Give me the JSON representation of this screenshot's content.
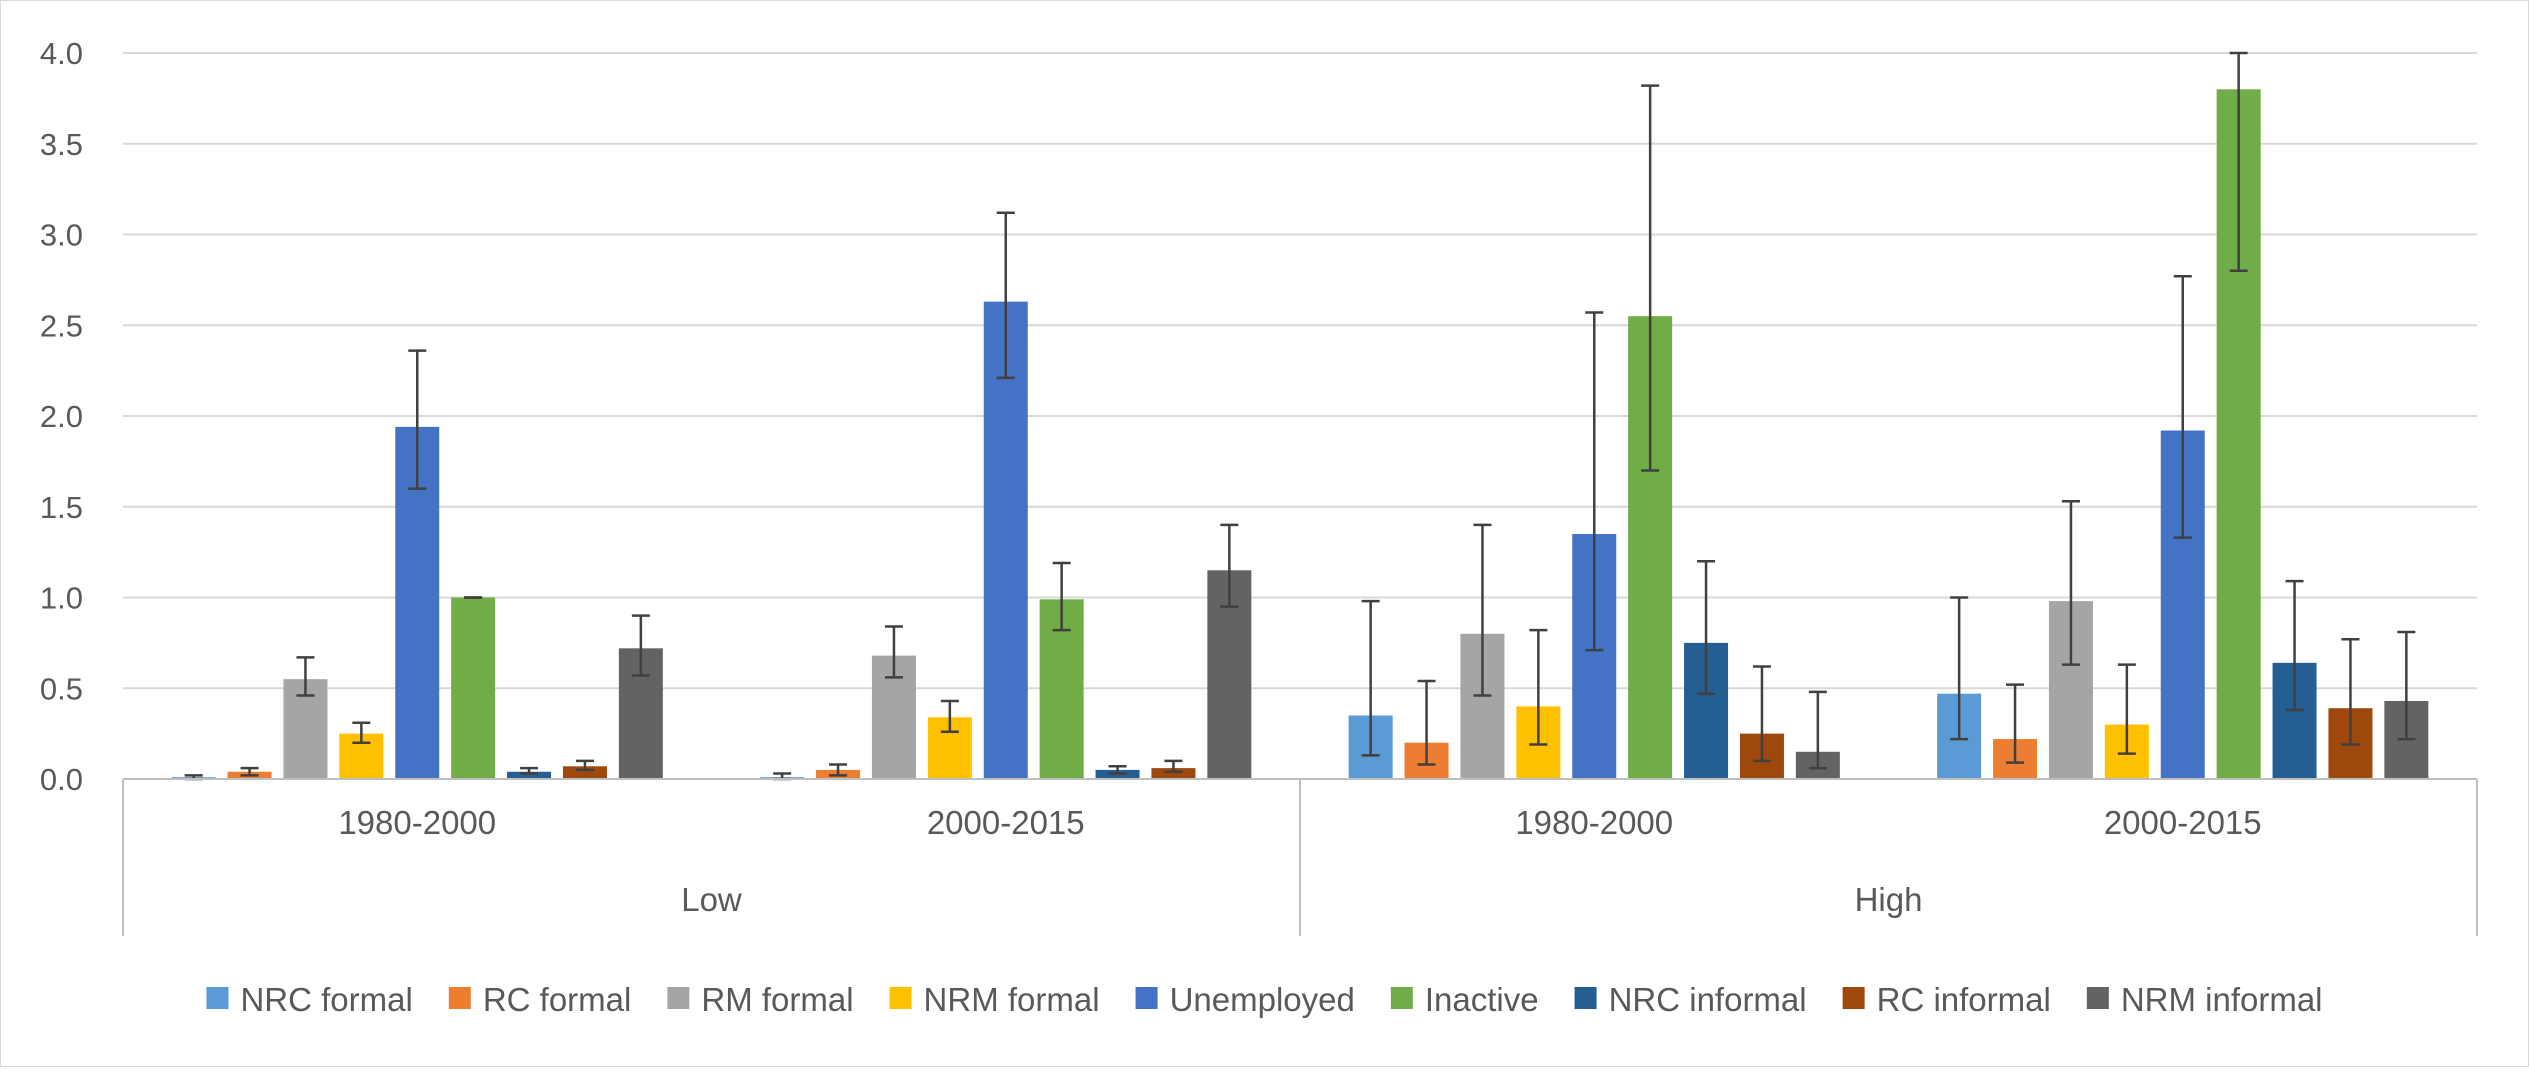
{
  "chart_data": {
    "type": "bar",
    "title": "",
    "xlabel": "",
    "ylabel": "",
    "ylim": [
      0,
      4.0
    ],
    "yticks": [
      "0.0",
      "0.5",
      "1.0",
      "1.5",
      "2.0",
      "2.5",
      "3.0",
      "3.5",
      "4.0"
    ],
    "grid": true,
    "legend_position": "bottom",
    "groups": [
      {
        "label": "Low",
        "categories": [
          "1980-2000",
          "2000-2015"
        ]
      },
      {
        "label": "High",
        "categories": [
          "1980-2000",
          "2000-2015"
        ]
      }
    ],
    "categories": [
      "Low 1980-2000",
      "Low 2000-2015",
      "High 1980-2000",
      "High 2000-2015"
    ],
    "series": [
      {
        "name": "NRC formal",
        "color": "#5b9bd5",
        "values": [
          0.01,
          0.01,
          0.35,
          0.47
        ],
        "error_low": [
          0.0,
          0.0,
          0.13,
          0.22
        ],
        "error_high": [
          0.02,
          0.03,
          0.98,
          1.0
        ]
      },
      {
        "name": "RC formal",
        "color": "#ed7d31",
        "values": [
          0.04,
          0.05,
          0.2,
          0.22
        ],
        "error_low": [
          0.02,
          0.02,
          0.08,
          0.09
        ],
        "error_high": [
          0.06,
          0.08,
          0.54,
          0.52
        ]
      },
      {
        "name": "RM formal",
        "color": "#a5a5a5",
        "values": [
          0.55,
          0.68,
          0.8,
          0.98
        ],
        "error_low": [
          0.46,
          0.56,
          0.46,
          0.63
        ],
        "error_high": [
          0.67,
          0.84,
          1.4,
          1.53
        ]
      },
      {
        "name": "NRM formal",
        "color": "#ffc000",
        "values": [
          0.25,
          0.34,
          0.4,
          0.3
        ],
        "error_low": [
          0.2,
          0.26,
          0.19,
          0.14
        ],
        "error_high": [
          0.31,
          0.43,
          0.82,
          0.63
        ]
      },
      {
        "name": "Unemployed",
        "color": "#4472c4",
        "values": [
          1.94,
          2.63,
          1.35,
          1.92
        ],
        "error_low": [
          1.6,
          2.21,
          0.71,
          1.33
        ],
        "error_high": [
          2.36,
          3.12,
          2.57,
          2.77
        ]
      },
      {
        "name": "Inactive",
        "color": "#70ad47",
        "values": [
          1.0,
          0.99,
          2.55,
          3.8
        ],
        "error_low": [
          1.0,
          0.82,
          1.7,
          2.8
        ],
        "error_high": [
          1.0,
          1.19,
          3.82,
          4.0
        ]
      },
      {
        "name": "NRC informal",
        "color": "#255e91",
        "values": [
          0.04,
          0.05,
          0.75,
          0.64
        ],
        "error_low": [
          0.03,
          0.03,
          0.47,
          0.38
        ],
        "error_high": [
          0.06,
          0.07,
          1.2,
          1.09
        ]
      },
      {
        "name": "RC informal",
        "color": "#9e480e",
        "values": [
          0.07,
          0.06,
          0.25,
          0.39
        ],
        "error_low": [
          0.05,
          0.04,
          0.1,
          0.19
        ],
        "error_high": [
          0.1,
          0.1,
          0.62,
          0.77
        ]
      },
      {
        "name": "NRM informal",
        "color": "#636363",
        "values": [
          0.72,
          1.15,
          0.15,
          0.43
        ],
        "error_low": [
          0.57,
          0.95,
          0.06,
          0.22
        ],
        "error_high": [
          0.9,
          1.4,
          0.48,
          0.81
        ]
      }
    ]
  }
}
